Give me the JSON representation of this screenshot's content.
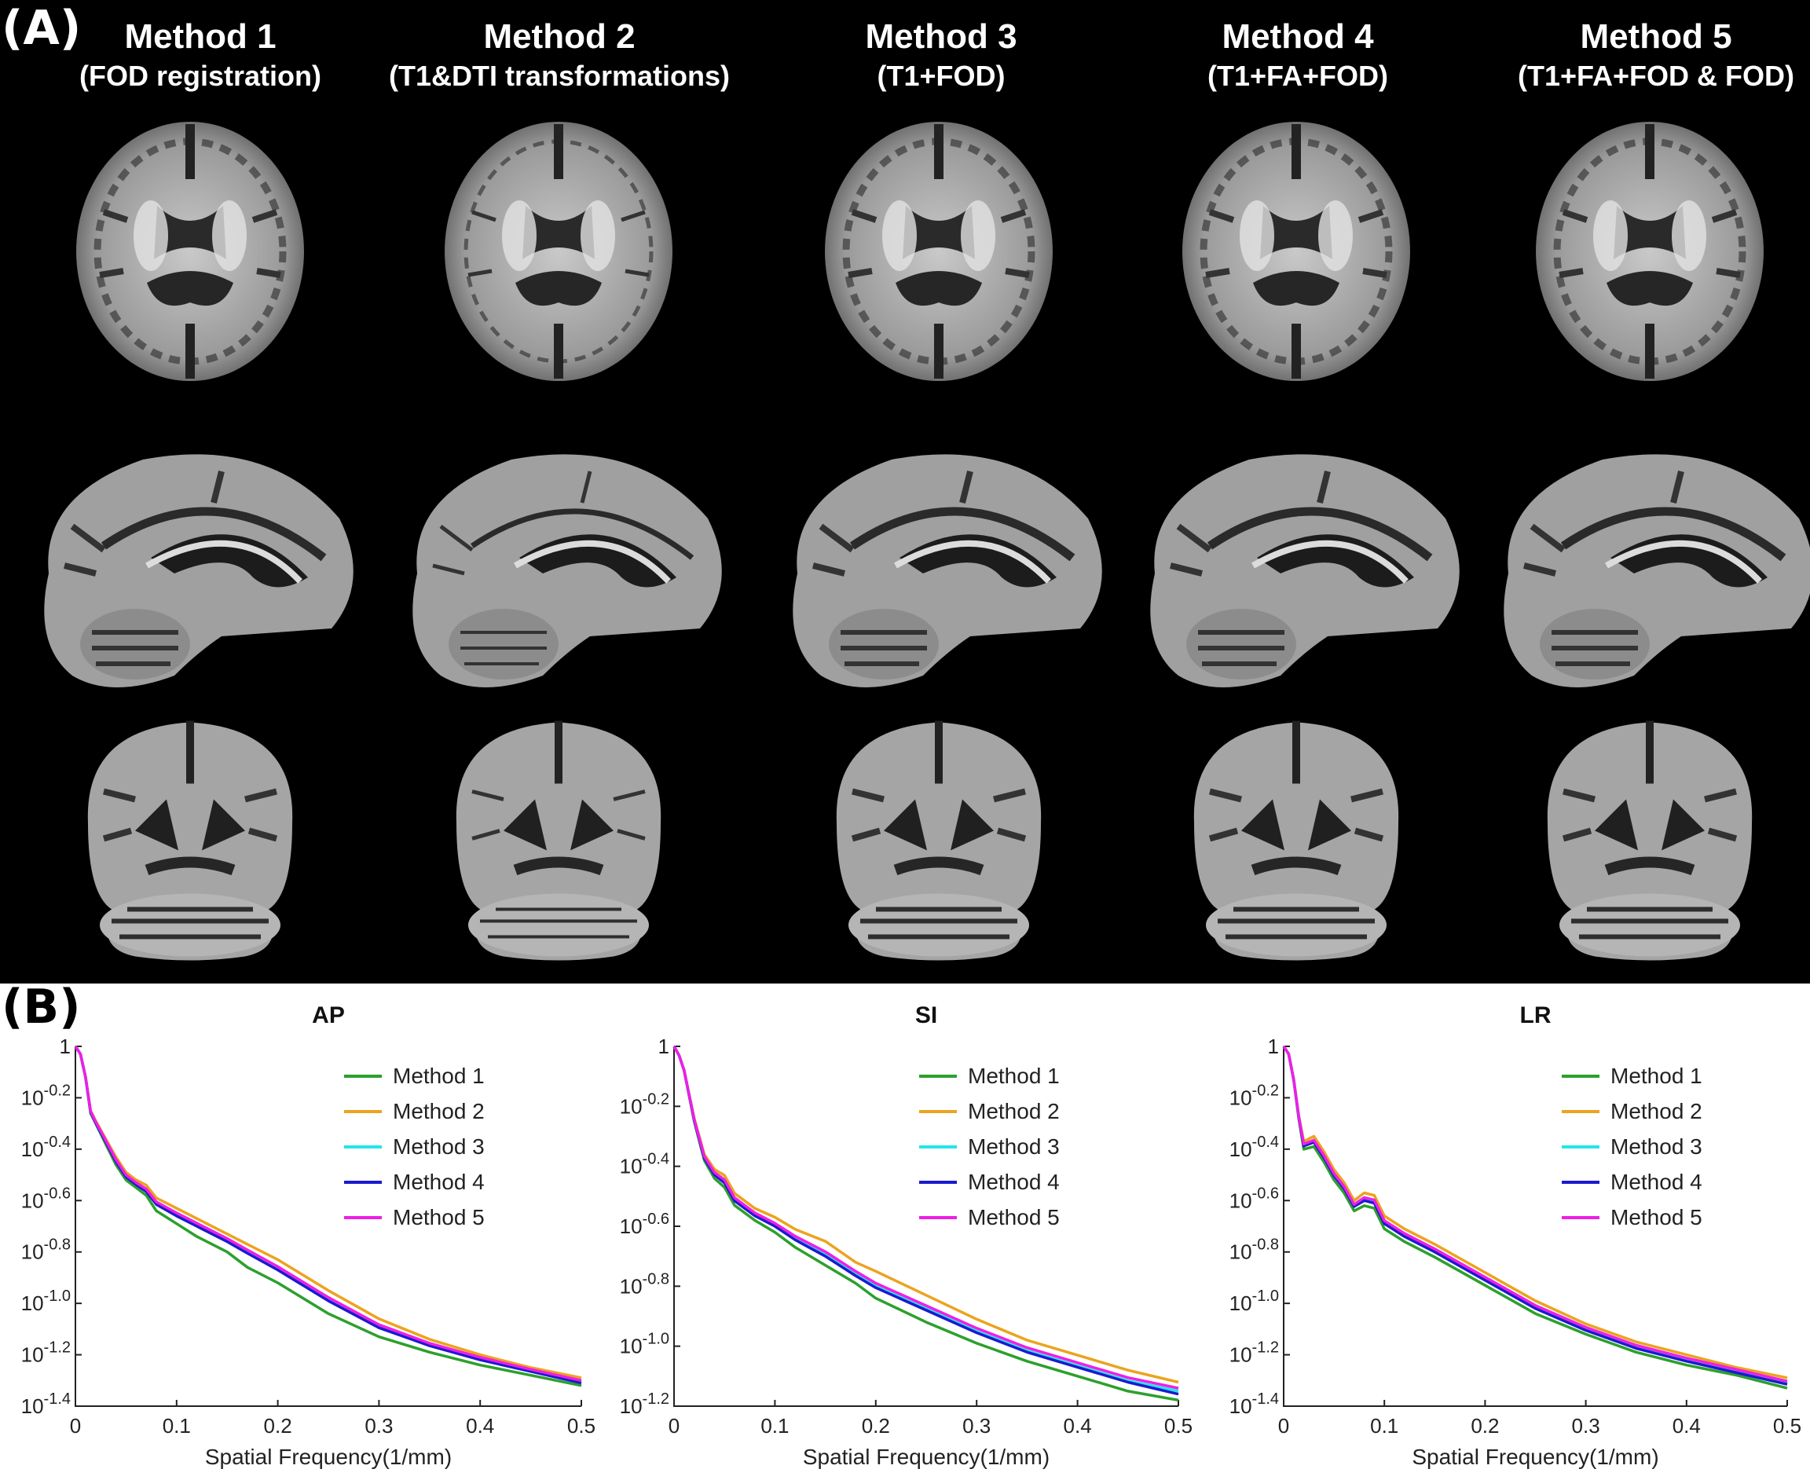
{
  "panel_a": {
    "label": "(A)",
    "methods": [
      {
        "title": "Method 1",
        "subtitle": "(FOD registration)"
      },
      {
        "title": "Method 2",
        "subtitle": "(T1&DTI transformations)"
      },
      {
        "title": "Method 3",
        "subtitle": "(T1+FOD)"
      },
      {
        "title": "Method 4",
        "subtitle": "(T1+FA+FOD)"
      },
      {
        "title": "Method 5",
        "subtitle": "(T1+FA+FOD & FOD)"
      }
    ],
    "views": [
      "axial",
      "sagittal",
      "coronal"
    ]
  },
  "panel_b": {
    "label": "(B)"
  },
  "chart_data": [
    {
      "type": "line",
      "title": "AP",
      "xlabel": "Spatial Frequency(1/mm)",
      "ylabel": "",
      "xlim": [
        0,
        0.5
      ],
      "ylim": [
        -1.4,
        0
      ],
      "yscale": "log10",
      "x_ticks": [
        "0",
        "0.1",
        "0.2",
        "0.3",
        "0.4",
        "0.5"
      ],
      "y_ticks": [
        "1",
        "10^-0.2",
        "10^-0.4",
        "10^-0.6",
        "10^-0.8",
        "10^-1.0",
        "10^-1.2",
        "10^-1.4"
      ],
      "legend_position": "top-right",
      "grid": false,
      "x": [
        0,
        0.005,
        0.01,
        0.015,
        0.02,
        0.03,
        0.04,
        0.05,
        0.06,
        0.07,
        0.08,
        0.1,
        0.12,
        0.15,
        0.17,
        0.2,
        0.25,
        0.3,
        0.35,
        0.4,
        0.45,
        0.5
      ],
      "series": [
        {
          "name": "Method 1",
          "color": "#2ca02c",
          "values": [
            0,
            -0.03,
            -0.12,
            -0.26,
            -0.3,
            -0.38,
            -0.46,
            -0.52,
            -0.55,
            -0.58,
            -0.64,
            -0.69,
            -0.74,
            -0.8,
            -0.86,
            -0.92,
            -1.04,
            -1.13,
            -1.19,
            -1.24,
            -1.28,
            -1.32
          ]
        },
        {
          "name": "Method 2",
          "color": "#eba41e",
          "values": [
            0,
            -0.03,
            -0.12,
            -0.25,
            -0.29,
            -0.36,
            -0.43,
            -0.49,
            -0.52,
            -0.54,
            -0.59,
            -0.63,
            -0.67,
            -0.73,
            -0.77,
            -0.83,
            -0.95,
            -1.06,
            -1.14,
            -1.2,
            -1.25,
            -1.29
          ]
        },
        {
          "name": "Method 3",
          "color": "#22e5ea",
          "values": [
            0,
            -0.03,
            -0.12,
            -0.255,
            -0.295,
            -0.37,
            -0.445,
            -0.505,
            -0.535,
            -0.56,
            -0.61,
            -0.655,
            -0.695,
            -0.755,
            -0.8,
            -0.865,
            -0.985,
            -1.09,
            -1.16,
            -1.215,
            -1.26,
            -1.305
          ]
        },
        {
          "name": "Method 4",
          "color": "#1a1ad0",
          "values": [
            0,
            -0.03,
            -0.12,
            -0.255,
            -0.298,
            -0.372,
            -0.448,
            -0.508,
            -0.538,
            -0.565,
            -0.615,
            -0.66,
            -0.7,
            -0.76,
            -0.805,
            -0.87,
            -0.99,
            -1.095,
            -1.165,
            -1.22,
            -1.265,
            -1.31
          ]
        },
        {
          "name": "Method 5",
          "color": "#f01ee6",
          "values": [
            0,
            -0.03,
            -0.12,
            -0.252,
            -0.293,
            -0.366,
            -0.44,
            -0.5,
            -0.53,
            -0.555,
            -0.605,
            -0.648,
            -0.688,
            -0.748,
            -0.792,
            -0.857,
            -0.977,
            -1.083,
            -1.155,
            -1.21,
            -1.257,
            -1.3
          ]
        }
      ]
    },
    {
      "type": "line",
      "title": "SI",
      "xlabel": "Spatial Frequency(1/mm)",
      "ylabel": "",
      "xlim": [
        0,
        0.5
      ],
      "ylim": [
        -1.2,
        0
      ],
      "yscale": "log10",
      "x_ticks": [
        "0",
        "0.1",
        "0.2",
        "0.3",
        "0.4",
        "0.5"
      ],
      "y_ticks": [
        "1",
        "10^-0.2",
        "10^-0.4",
        "10^-0.6",
        "10^-0.8",
        "10^-1.0",
        "10^-1.2"
      ],
      "legend_position": "top-right",
      "grid": false,
      "x": [
        0,
        0.005,
        0.01,
        0.02,
        0.03,
        0.04,
        0.05,
        0.06,
        0.08,
        0.1,
        0.12,
        0.15,
        0.18,
        0.2,
        0.25,
        0.3,
        0.35,
        0.4,
        0.45,
        0.5
      ],
      "series": [
        {
          "name": "Method 1",
          "color": "#2ca02c",
          "values": [
            0,
            -0.03,
            -0.08,
            -0.25,
            -0.38,
            -0.44,
            -0.47,
            -0.53,
            -0.58,
            -0.62,
            -0.67,
            -0.73,
            -0.79,
            -0.84,
            -0.92,
            -0.99,
            -1.05,
            -1.1,
            -1.15,
            -1.18
          ]
        },
        {
          "name": "Method 2",
          "color": "#eba41e",
          "values": [
            0,
            -0.03,
            -0.08,
            -0.24,
            -0.36,
            -0.41,
            -0.43,
            -0.49,
            -0.54,
            -0.57,
            -0.61,
            -0.65,
            -0.72,
            -0.75,
            -0.83,
            -0.91,
            -0.98,
            -1.03,
            -1.08,
            -1.12
          ]
        },
        {
          "name": "Method 3",
          "color": "#22e5ea",
          "values": [
            0,
            -0.03,
            -0.08,
            -0.245,
            -0.37,
            -0.425,
            -0.45,
            -0.51,
            -0.56,
            -0.595,
            -0.64,
            -0.695,
            -0.76,
            -0.8,
            -0.875,
            -0.95,
            -1.015,
            -1.065,
            -1.115,
            -1.15
          ]
        },
        {
          "name": "Method 4",
          "color": "#1a1ad0",
          "values": [
            0,
            -0.03,
            -0.08,
            -0.247,
            -0.373,
            -0.428,
            -0.455,
            -0.515,
            -0.565,
            -0.6,
            -0.645,
            -0.7,
            -0.765,
            -0.805,
            -0.88,
            -0.955,
            -1.02,
            -1.07,
            -1.12,
            -1.16
          ]
        },
        {
          "name": "Method 5",
          "color": "#f01ee6",
          "values": [
            0,
            -0.03,
            -0.08,
            -0.243,
            -0.367,
            -0.42,
            -0.445,
            -0.505,
            -0.555,
            -0.59,
            -0.633,
            -0.685,
            -0.75,
            -0.79,
            -0.865,
            -0.94,
            -1.005,
            -1.055,
            -1.105,
            -1.14
          ]
        }
      ]
    },
    {
      "type": "line",
      "title": "LR",
      "xlabel": "Spatial Frequency(1/mm)",
      "ylabel": "",
      "xlim": [
        0,
        0.5
      ],
      "ylim": [
        -1.4,
        0
      ],
      "yscale": "log10",
      "x_ticks": [
        "0",
        "0.1",
        "0.2",
        "0.3",
        "0.4",
        "0.5"
      ],
      "y_ticks": [
        "1",
        "10^-0.2",
        "10^-0.4",
        "10^-0.6",
        "10^-0.8",
        "10^-1.0",
        "10^-1.2",
        "10^-1.4"
      ],
      "legend_position": "top-right",
      "grid": false,
      "x": [
        0,
        0.005,
        0.01,
        0.015,
        0.02,
        0.03,
        0.04,
        0.05,
        0.06,
        0.07,
        0.08,
        0.09,
        0.1,
        0.12,
        0.15,
        0.2,
        0.25,
        0.3,
        0.35,
        0.4,
        0.45,
        0.5
      ],
      "series": [
        {
          "name": "Method 1",
          "color": "#2ca02c",
          "values": [
            0,
            -0.03,
            -0.13,
            -0.28,
            -0.4,
            -0.39,
            -0.45,
            -0.52,
            -0.57,
            -0.64,
            -0.62,
            -0.63,
            -0.71,
            -0.76,
            -0.82,
            -0.93,
            -1.04,
            -1.12,
            -1.19,
            -1.24,
            -1.28,
            -1.33
          ]
        },
        {
          "name": "Method 2",
          "color": "#eba41e",
          "values": [
            0,
            -0.03,
            -0.13,
            -0.27,
            -0.37,
            -0.35,
            -0.41,
            -0.48,
            -0.53,
            -0.6,
            -0.57,
            -0.58,
            -0.66,
            -0.71,
            -0.77,
            -0.88,
            -0.99,
            -1.08,
            -1.15,
            -1.2,
            -1.25,
            -1.29
          ]
        },
        {
          "name": "Method 3",
          "color": "#22e5ea",
          "values": [
            0,
            -0.03,
            -0.13,
            -0.275,
            -0.385,
            -0.37,
            -0.43,
            -0.5,
            -0.55,
            -0.62,
            -0.595,
            -0.605,
            -0.685,
            -0.735,
            -0.795,
            -0.905,
            -1.015,
            -1.1,
            -1.17,
            -1.22,
            -1.265,
            -1.31
          ]
        },
        {
          "name": "Method 4",
          "color": "#1a1ad0",
          "values": [
            0,
            -0.03,
            -0.13,
            -0.276,
            -0.388,
            -0.373,
            -0.433,
            -0.503,
            -0.553,
            -0.623,
            -0.6,
            -0.61,
            -0.69,
            -0.74,
            -0.8,
            -0.91,
            -1.02,
            -1.105,
            -1.175,
            -1.225,
            -1.27,
            -1.315
          ]
        },
        {
          "name": "Method 5",
          "color": "#f01ee6",
          "values": [
            0,
            -0.03,
            -0.13,
            -0.272,
            -0.38,
            -0.365,
            -0.425,
            -0.495,
            -0.545,
            -0.615,
            -0.588,
            -0.598,
            -0.678,
            -0.728,
            -0.788,
            -0.898,
            -1.008,
            -1.093,
            -1.163,
            -1.213,
            -1.258,
            -1.303
          ]
        }
      ]
    }
  ]
}
